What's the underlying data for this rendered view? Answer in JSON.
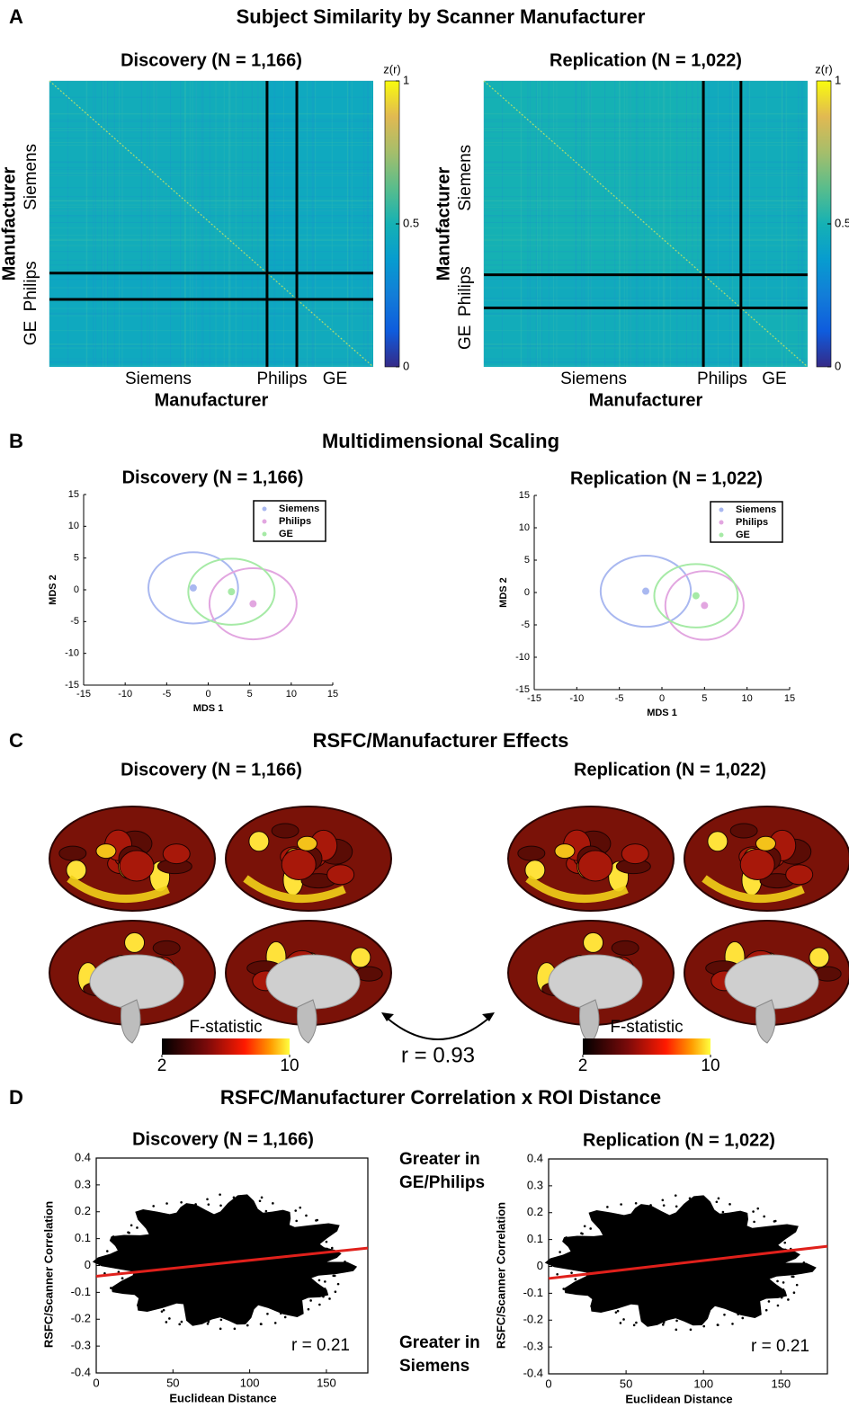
{
  "figure": {
    "panels": [
      {
        "letter": "A",
        "title": "Subject Similarity by Scanner Manufacturer",
        "charts": [
          {
            "type": "heatmap",
            "title": "Discovery (N = 1,166)",
            "x_label": "Manufacturer",
            "y_label": "Manufacturer",
            "categories": [
              "Siemens",
              "Philips",
              "GE"
            ],
            "group_bounds": [
              0.672,
              0.764
            ],
            "block_means": [
              [
                0.47,
                0.44,
                0.45
              ],
              [
                0.44,
                0.45,
                0.44
              ],
              [
                0.45,
                0.44,
                0.46
              ]
            ],
            "colorbar_label": "z(r)",
            "clim": [
              0,
              1
            ],
            "cticks": [
              0,
              0.5,
              1
            ]
          },
          {
            "type": "heatmap",
            "title": "Replication (N = 1,022)",
            "x_label": "Manufacturer",
            "y_label": "Manufacturer",
            "categories": [
              "Siemens",
              "Philips",
              "GE"
            ],
            "group_bounds": [
              0.678,
              0.794
            ],
            "block_means": [
              [
                0.5,
                0.46,
                0.47
              ],
              [
                0.46,
                0.47,
                0.46
              ],
              [
                0.47,
                0.46,
                0.49
              ]
            ],
            "colorbar_label": "z(r)",
            "clim": [
              0,
              1
            ],
            "cticks": [
              0,
              0.5,
              1
            ]
          }
        ]
      },
      {
        "letter": "B",
        "title": "Multidimensional Scaling",
        "charts": [
          {
            "type": "mds",
            "title": "Discovery (N = 1,166)",
            "x_label": "MDS 1",
            "y_label": "MDS 2",
            "xlim": [
              -15,
              15
            ],
            "ylim": [
              -15,
              15
            ],
            "xticks": [
              -15,
              -10,
              -5,
              0,
              5,
              10,
              15
            ],
            "yticks": [
              -15,
              -10,
              -5,
              0,
              5,
              10,
              15
            ],
            "series": [
              {
                "name": "Siemens",
                "color": "#a9b8f0",
                "center": [
                  -1.8,
                  0.3
                ],
                "radius": [
                  5.4,
                  5.6
                ]
              },
              {
                "name": "Philips",
                "color": "#e2a6e0",
                "center": [
                  5.4,
                  -2.2
                ],
                "radius": [
                  5.25,
                  5.6
                ]
              },
              {
                "name": "GE",
                "color": "#a6eaa6",
                "center": [
                  2.8,
                  -0.3
                ],
                "radius": [
                  5.2,
                  5.2
                ]
              }
            ]
          },
          {
            "type": "mds",
            "title": "Replication (N = 1,022)",
            "x_label": "MDS 1",
            "y_label": "MDS 2",
            "xlim": [
              -15,
              15
            ],
            "ylim": [
              -15,
              15
            ],
            "xticks": [
              -15,
              -10,
              -5,
              0,
              5,
              10,
              15
            ],
            "yticks": [
              -15,
              -10,
              -5,
              0,
              5,
              10,
              15
            ],
            "series": [
              {
                "name": "Siemens",
                "color": "#a9b8f0",
                "center": [
                  -1.9,
                  0.2
                ],
                "radius": [
                  5.3,
                  5.5
                ]
              },
              {
                "name": "Philips",
                "color": "#e2a6e0",
                "center": [
                  5,
                  -2
                ],
                "radius": [
                  4.6,
                  5.3
                ]
              },
              {
                "name": "GE",
                "color": "#a6eaa6",
                "center": [
                  4,
                  -0.5
                ],
                "radius": [
                  4.9,
                  4.9
                ]
              }
            ]
          }
        ]
      },
      {
        "letter": "C",
        "title": "RSFC/Manufacturer Effects",
        "annotation": "r = 0.93",
        "charts": [
          {
            "type": "brain",
            "title": "Discovery (N = 1,166)",
            "colorbar_label": "F-statistic",
            "clim": [
              2,
              10
            ],
            "cticks": [
              2,
              10
            ]
          },
          {
            "type": "brain",
            "title": "Replication (N = 1,022)",
            "colorbar_label": "F-statistic",
            "clim": [
              2,
              10
            ],
            "cticks": [
              2,
              10
            ]
          }
        ]
      },
      {
        "letter": "D",
        "title": "RSFC/Manufacturer Correlation x ROI Distance",
        "side_labels": [
          [
            "Greater in",
            "GE/Philips"
          ],
          [
            "Greater in",
            "Siemens"
          ]
        ],
        "charts": [
          {
            "type": "scatter",
            "title": "Discovery (N = 1,166)",
            "x_label": "Euclidean Distance",
            "y_label": "RSFC/Scanner Correlation",
            "xlim": [
              0,
              177
            ],
            "ylim": [
              -0.4,
              0.4
            ],
            "xticks": [
              0,
              50,
              100,
              150
            ],
            "yticks": [
              -0.4,
              -0.3,
              -0.2,
              -0.1,
              0,
              0.1,
              0.2,
              0.3,
              0.4
            ],
            "fit": {
              "x": [
                0,
                177
              ],
              "y": [
                -0.04,
                0.065
              ],
              "color": "#e0201b"
            },
            "annotation": "r = 0.21"
          },
          {
            "type": "scatter",
            "title": "Replication (N = 1,022)",
            "x_label": "Euclidean Distance",
            "y_label": "RSFC/Scanner Correlation",
            "xlim": [
              0,
              180
            ],
            "ylim": [
              -0.4,
              0.4
            ],
            "xticks": [
              0,
              50,
              100,
              150
            ],
            "yticks": [
              -0.4,
              -0.3,
              -0.2,
              -0.1,
              0,
              0.1,
              0.2,
              0.3,
              0.4
            ],
            "fit": {
              "x": [
                0,
                180
              ],
              "y": [
                -0.045,
                0.075
              ],
              "color": "#e0201b"
            },
            "annotation": "r = 0.21"
          }
        ]
      }
    ]
  }
}
